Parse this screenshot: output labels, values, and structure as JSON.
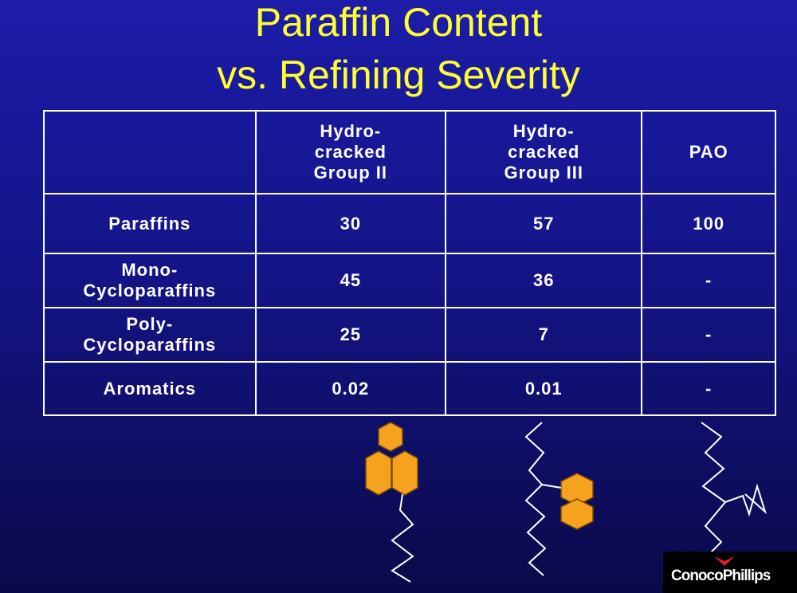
{
  "title": {
    "line1": "Paraffin Content",
    "line2": "vs. Refining Severity"
  },
  "table": {
    "header": [
      "Hydro-\ncracked\nGroup II",
      "Hydro-\ncracked\nGroup III",
      "PAO"
    ],
    "rows": [
      [
        "Paraffins",
        30,
        57,
        100
      ],
      [
        "Mono-\nCycloparaffins",
        45,
        36,
        "-"
      ],
      [
        "Poly-\nCycloparaffins",
        25,
        7,
        "-"
      ],
      [
        "Aromatics",
        0.02,
        0.01,
        "-"
      ]
    ]
  },
  "logo": {
    "text": "ConocoPhillips"
  }
}
